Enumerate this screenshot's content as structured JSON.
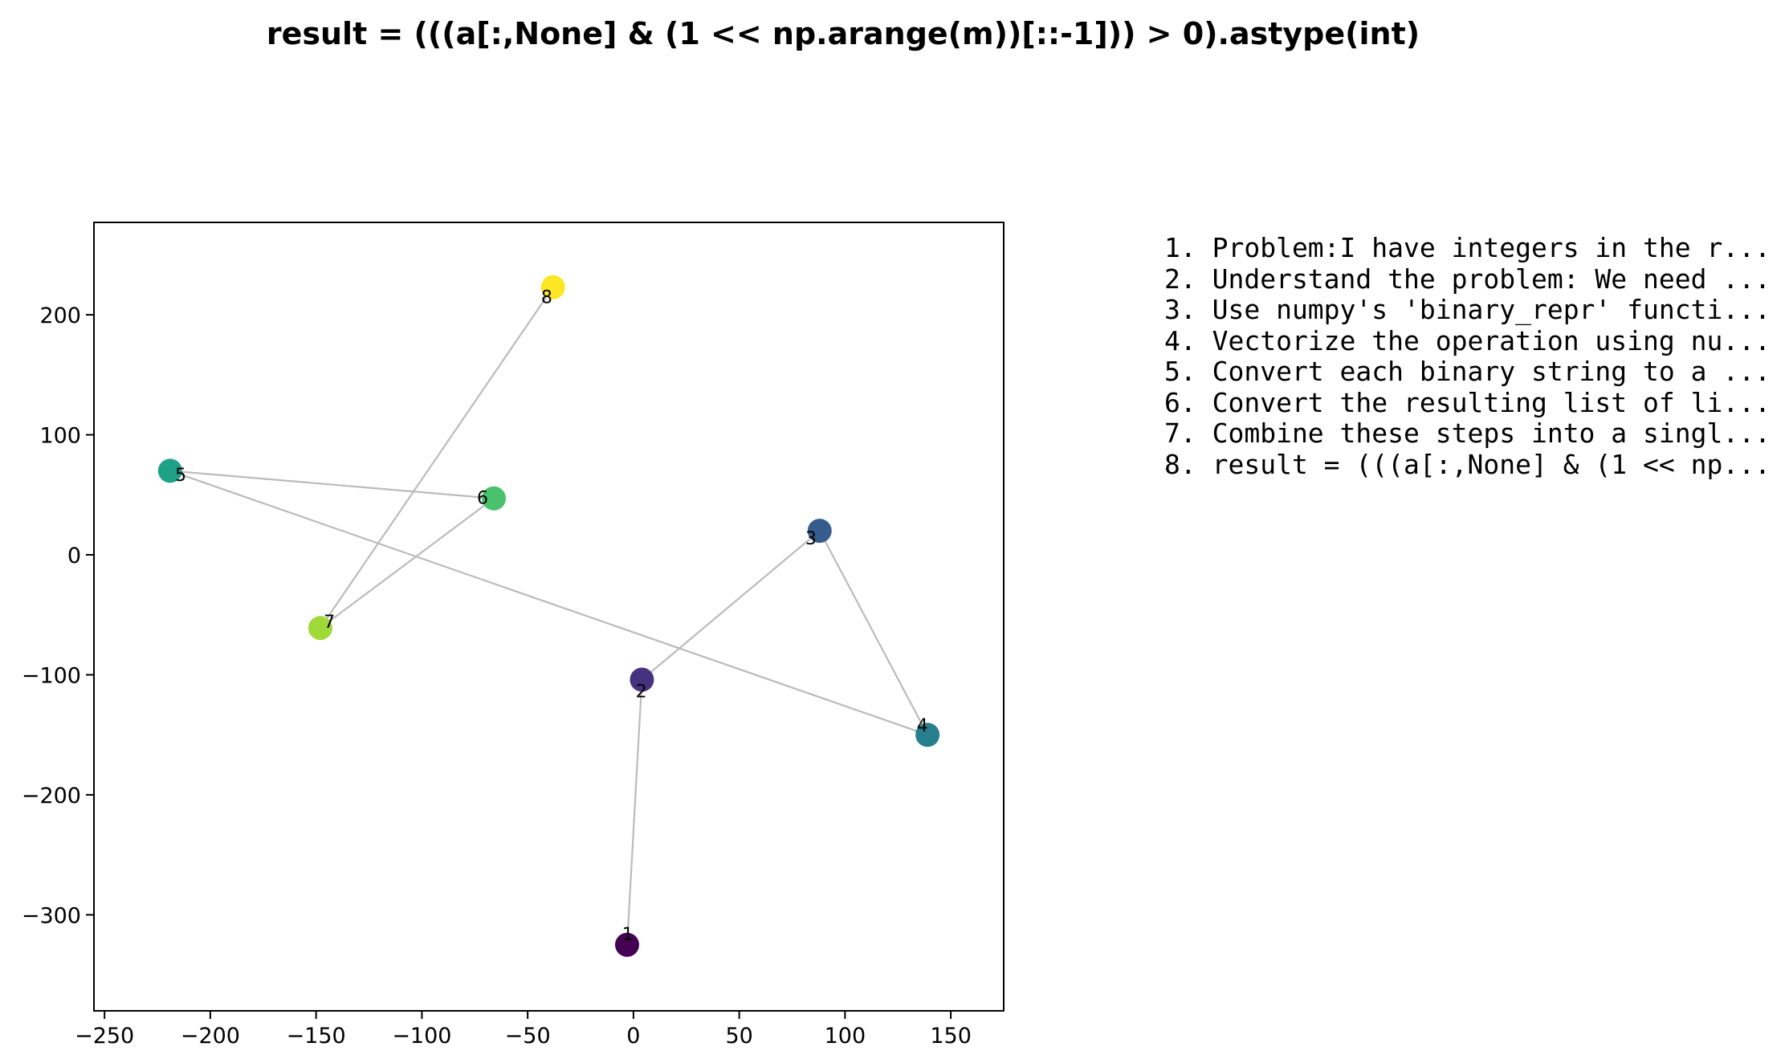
{
  "title": "result = (((a[:,None] & (1 << np.arange(m))[::-1])) > 0).astype(int)",
  "steps": [
    "1. Problem:I have integers in the r...",
    "2. Understand the problem: We need ...",
    "3. Use numpy's 'binary_repr' functi...",
    "4. Vectorize the operation using nu...",
    "5. Convert each binary string to a ...",
    "6. Convert the resulting list of li...",
    "7. Combine these steps into a singl...",
    "8. result = (((a[:,None] & (1 << np..."
  ],
  "chart_data": {
    "type": "scatter",
    "title": "result = (((a[:,None] & (1 << np.arange(m))[::-1])) > 0).astype(int)",
    "xlabel": "",
    "ylabel": "",
    "xlim": [
      -255,
      175
    ],
    "ylim": [
      -380,
      277
    ],
    "xticks": [
      -250,
      -200,
      -150,
      -100,
      -50,
      0,
      50,
      100,
      150
    ],
    "yticks": [
      -300,
      -200,
      -100,
      0,
      100,
      200
    ],
    "grid": false,
    "edge_color": "#bbbbbb",
    "points": [
      {
        "label": "1",
        "x": -3,
        "y": -325,
        "color": "#440154"
      },
      {
        "label": "2",
        "x": 4,
        "y": -104,
        "color": "#46327e"
      },
      {
        "label": "3",
        "x": 88,
        "y": 20,
        "color": "#365c8d"
      },
      {
        "label": "4",
        "x": 139,
        "y": -150,
        "color": "#277f8e"
      },
      {
        "label": "5",
        "x": -219,
        "y": 70,
        "color": "#1fa187"
      },
      {
        "label": "6",
        "x": -66,
        "y": 47,
        "color": "#4ac16d"
      },
      {
        "label": "7",
        "x": -148,
        "y": -61,
        "color": "#a0da39"
      },
      {
        "label": "8",
        "x": -38,
        "y": 223,
        "color": "#fde725"
      }
    ],
    "edges": [
      [
        0,
        1
      ],
      [
        1,
        2
      ],
      [
        2,
        3
      ],
      [
        3,
        4
      ],
      [
        4,
        5
      ],
      [
        5,
        6
      ],
      [
        6,
        7
      ]
    ]
  }
}
